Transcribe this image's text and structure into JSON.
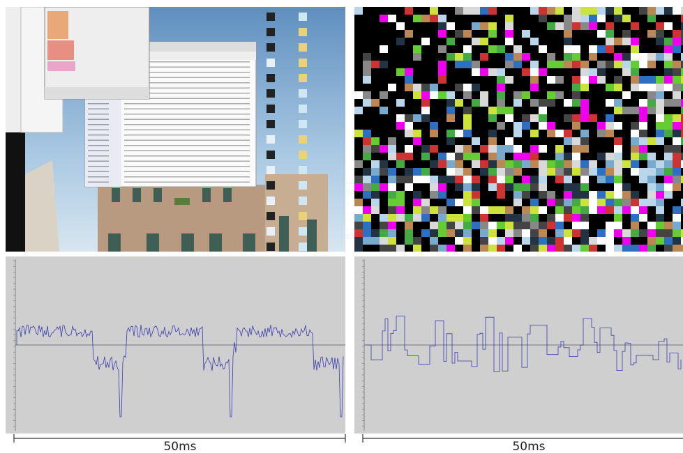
{
  "waveform_panels": [
    {
      "scale_bar_label": "50ms"
    },
    {
      "scale_bar_label": "50ms"
    }
  ]
}
